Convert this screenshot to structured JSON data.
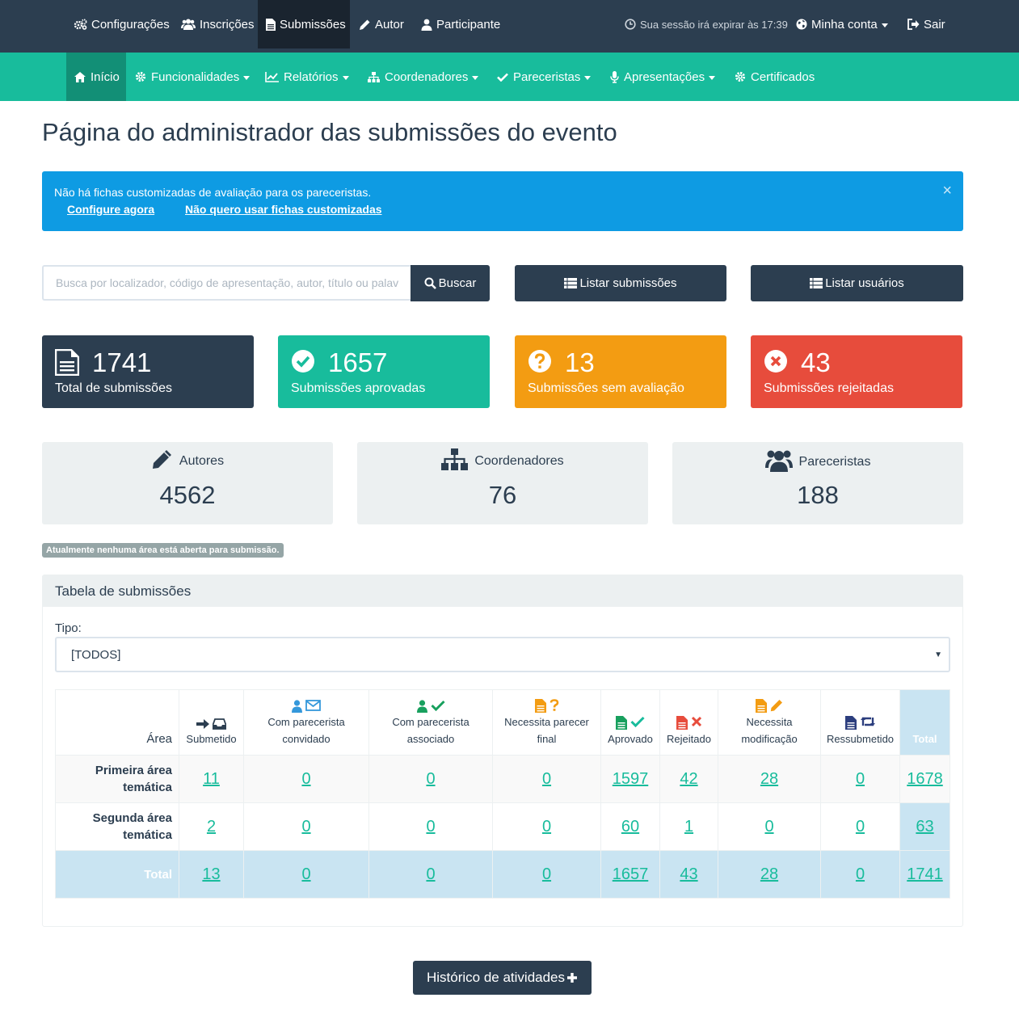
{
  "topnav": {
    "items": [
      "Configurações",
      "Inscrições",
      "Submissões",
      "Autor",
      "Participante"
    ],
    "session_text": "Sua sessão irá expirar às 17:39",
    "account": "Minha conta",
    "logout": "Sair"
  },
  "subnav": {
    "items": [
      "Início",
      "Funcionalidades",
      "Relatórios",
      "Coordenadores",
      "Pareceristas",
      "Apresentações",
      "Certificados"
    ]
  },
  "page_title": "Página do administrador das submissões do evento",
  "alert": {
    "message": "Não há fichas customizadas de avaliação para os pareceristas.",
    "link_configure": "Configure agora",
    "link_decline": "Não quero usar fichas customizadas",
    "close": "×"
  },
  "search": {
    "placeholder": "Busca por localizador, código de apresentação, autor, título ou palavra-chave",
    "button": "Buscar"
  },
  "buttons": {
    "list_submissions": "Listar submissões",
    "list_users": "Listar usuários",
    "history": "Histórico de atividades"
  },
  "stats": [
    {
      "value": "1741",
      "label": "Total de submissões",
      "color": "#2c3e50"
    },
    {
      "value": "1657",
      "label": "Submissões aprovadas",
      "color": "#18bc9c"
    },
    {
      "value": "13",
      "label": "Submissões sem avaliação",
      "color": "#f39c12"
    },
    {
      "value": "43",
      "label": "Submissões rejeitadas",
      "color": "#e74c3c"
    }
  ],
  "people": [
    {
      "label": "Autores",
      "value": "4562"
    },
    {
      "label": "Coordenadores",
      "value": "76"
    },
    {
      "label": "Pareceristas",
      "value": "188"
    }
  ],
  "badge": "Atualmente nenhuma área está aberta para submissão.",
  "table_panel": {
    "title": "Tabela de submissões",
    "tipo_label": "Tipo:",
    "tipo_value": "[TODOS]",
    "headers": [
      "Área",
      "Submetido",
      "Com parecerista convidado",
      "Com parecerista associado",
      "Necessita parecer final",
      "Aprovado",
      "Rejeitado",
      "Necessita modificação",
      "Ressubmetido",
      "Total"
    ],
    "rows": [
      {
        "area": "Primeira área temática",
        "values": [
          "11",
          "0",
          "0",
          "0",
          "1597",
          "42",
          "28",
          "0",
          "1678"
        ]
      },
      {
        "area": "Segunda área temática",
        "values": [
          "2",
          "0",
          "0",
          "0",
          "60",
          "1",
          "0",
          "0",
          "63"
        ]
      }
    ],
    "total_row": {
      "area": "Total",
      "values": [
        "13",
        "0",
        "0",
        "0",
        "1657",
        "43",
        "28",
        "0",
        "1741"
      ]
    }
  }
}
